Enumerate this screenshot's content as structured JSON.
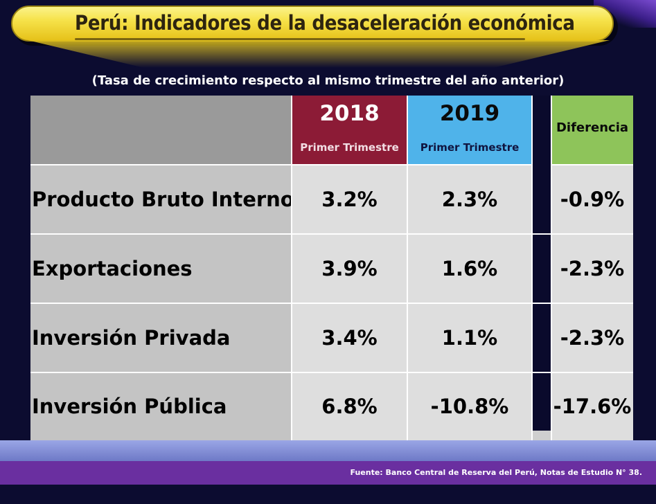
{
  "title": "Perú: Indicadores de la desaceleración económica",
  "subtitle": "(Tasa de crecimiento respecto al mismo trimestre del año anterior)",
  "source": "Fuente: Banco Central de Reserva del Perú, Notas de Estudio N° 38.",
  "colors": {
    "header_2018": "#8c1b36",
    "header_2019": "#4fb3ea",
    "header_diff": "#8ec45a",
    "title_band": "#f6e24a",
    "background": "#0c0c30",
    "footer": "#6a2fa0"
  },
  "chart_data": {
    "type": "table",
    "columns": [
      {
        "year": "2018",
        "sub": "Primer Trimestre"
      },
      {
        "year": "2019",
        "sub": "Primer Trimestre"
      },
      {
        "label": "Diferencia"
      }
    ],
    "rows": [
      {
        "label": "Producto Bruto Interno",
        "v2018": "3.2%",
        "v2019": "2.3%",
        "diff": "-0.9%"
      },
      {
        "label": "Exportaciones",
        "v2018": "3.9%",
        "v2019": "1.6%",
        "diff": "-2.3%"
      },
      {
        "label": "Inversión Privada",
        "v2018": "3.4%",
        "v2019": "1.1%",
        "diff": "-2.3%"
      },
      {
        "label": "Inversión Pública",
        "v2018": "6.8%",
        "v2019": "-10.8%",
        "diff": "-17.6%"
      }
    ]
  }
}
